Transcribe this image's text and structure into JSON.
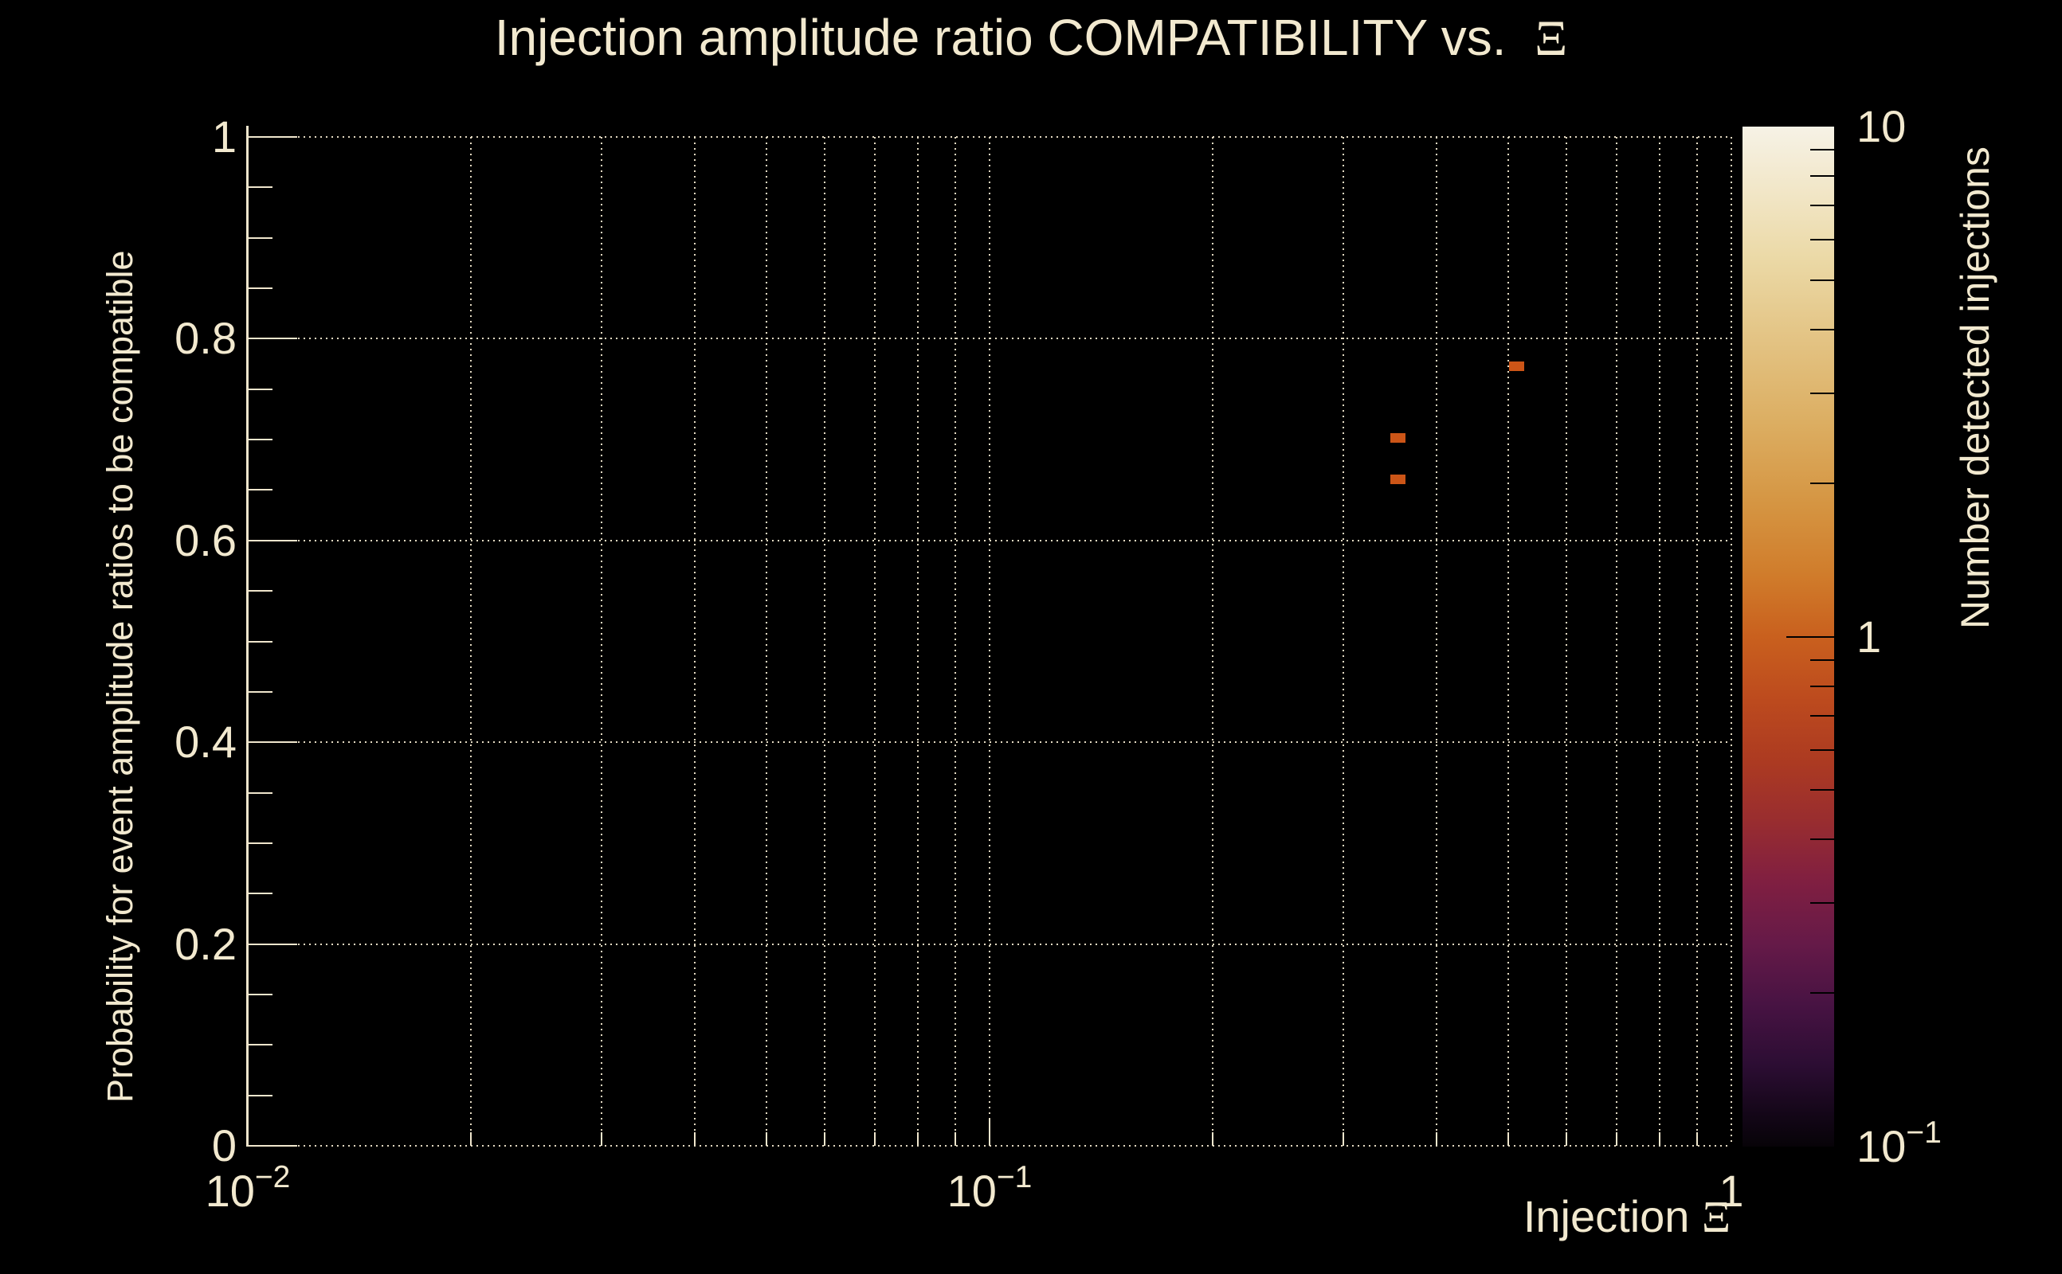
{
  "page": {
    "background": "#000000",
    "text_color": "#F2E9CF",
    "accent_cream": "#F0E6CD"
  },
  "chart_data": {
    "type": "heatmap",
    "title": "Injection amplitude ratio COMPATIBILITY vs.  Ξ",
    "xlabel": "Injection Ξ",
    "ylabel": "Probability for event amplitude ratios to be compatible",
    "zlabel": "Number detected injections",
    "x_scale": "log",
    "x_range": [
      0.01,
      1
    ],
    "y_scale": "linear",
    "y_range": [
      0,
      1
    ],
    "z_scale": "log",
    "z_range": [
      0.1,
      10
    ],
    "grid": true,
    "grid_style": "dotted",
    "legend_position": "right-colorbar",
    "points": [
      {
        "x": 0.513,
        "y": 0.773,
        "count": 1
      },
      {
        "x": 0.355,
        "y": 0.702,
        "count": 1
      },
      {
        "x": 0.355,
        "y": 0.661,
        "count": 1
      }
    ],
    "cell_color": "#CC5517",
    "axes": {
      "x": {
        "major_ticks": [
          {
            "v": 0.01,
            "base": "10",
            "exp": "−2",
            "tick": false
          },
          {
            "v": 0.1,
            "base": "10",
            "exp": "−1",
            "tick": true
          },
          {
            "v": 1,
            "base": "1",
            "exp": "",
            "tick": false
          }
        ],
        "minor_tick_values": [
          0.02,
          0.03,
          0.04,
          0.05,
          0.06,
          0.07,
          0.08,
          0.09,
          0.2,
          0.3,
          0.4,
          0.5,
          0.6,
          0.7,
          0.8,
          0.9
        ],
        "grid_values": [
          0.02,
          0.03,
          0.04,
          0.05,
          0.06,
          0.07,
          0.08,
          0.09,
          0.1,
          0.2,
          0.3,
          0.4,
          0.5,
          0.6,
          0.7,
          0.8,
          0.9,
          1.0
        ]
      },
      "y": {
        "major_ticks": [
          {
            "v": 1,
            "label": "1"
          },
          {
            "v": 0.8,
            "label": "0.8"
          },
          {
            "v": 0.6,
            "label": "0.6"
          },
          {
            "v": 0.4,
            "label": "0.4"
          },
          {
            "v": 0.2,
            "label": "0.2"
          },
          {
            "v": 0,
            "label": "0"
          }
        ],
        "minor_tick_values": [
          0.05,
          0.1,
          0.15,
          0.25,
          0.3,
          0.35,
          0.45,
          0.5,
          0.55,
          0.65,
          0.7,
          0.75,
          0.85,
          0.9,
          0.95
        ]
      },
      "z": {
        "major_ticks": [
          {
            "v": 10,
            "base": "10",
            "exp": "",
            "tick": false
          },
          {
            "v": 1,
            "base": "1",
            "exp": "",
            "tick": true
          },
          {
            "v": 0.1,
            "base": "10",
            "exp": "−1",
            "tick": false
          }
        ],
        "minor_tick_values": [
          9,
          8,
          7,
          6,
          5,
          4,
          3,
          2,
          0.9,
          0.8,
          0.7,
          0.6,
          0.5,
          0.4,
          0.3,
          0.2
        ]
      }
    },
    "palette_gradient": [
      {
        "at": "0%",
        "color": "#F6F2E6"
      },
      {
        "at": "6%",
        "color": "#F2E7C9"
      },
      {
        "at": "13%",
        "color": "#EBD9A6"
      },
      {
        "at": "21%",
        "color": "#E3C383"
      },
      {
        "at": "29%",
        "color": "#DCAE62"
      },
      {
        "at": "37%",
        "color": "#D59542"
      },
      {
        "at": "44%",
        "color": "#D07C2B"
      },
      {
        "at": "50%",
        "color": "#C9601E"
      },
      {
        "at": "56%",
        "color": "#BD4B1E"
      },
      {
        "at": "62%",
        "color": "#AD3B21"
      },
      {
        "at": "68%",
        "color": "#992D2F"
      },
      {
        "at": "74%",
        "color": "#801F41"
      },
      {
        "at": "80%",
        "color": "#661A48"
      },
      {
        "at": "86%",
        "color": "#481343"
      },
      {
        "at": "92%",
        "color": "#2C0D33"
      },
      {
        "at": "97%",
        "color": "#130617"
      },
      {
        "at": "100%",
        "color": "#070308"
      }
    ]
  }
}
